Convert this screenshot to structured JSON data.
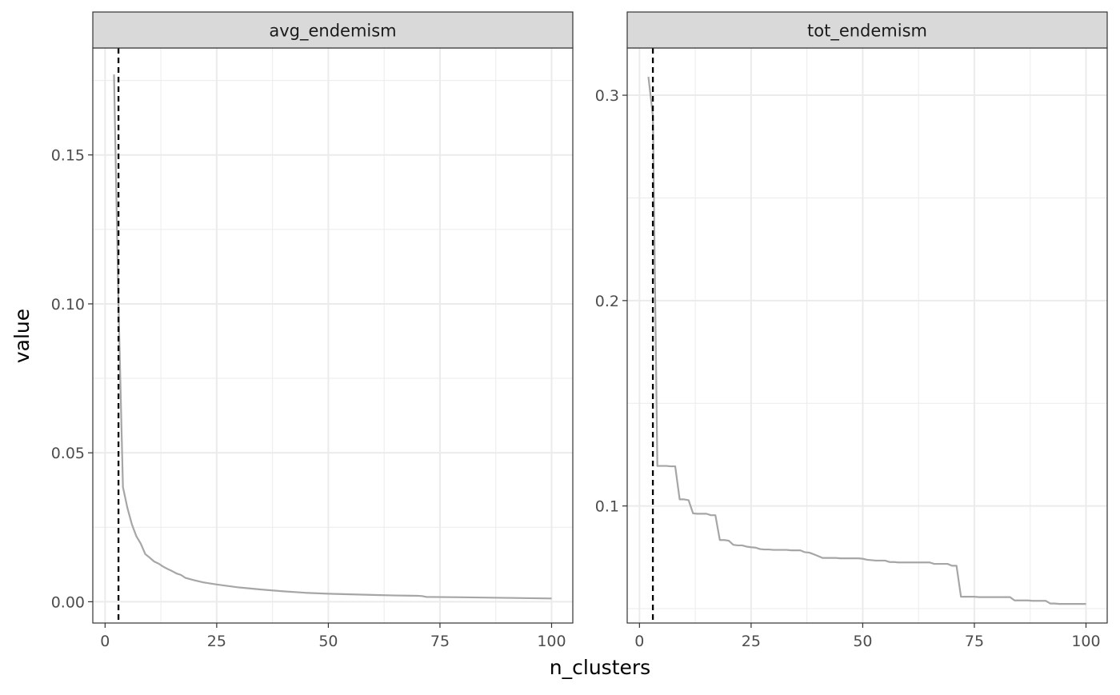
{
  "chart_data": {
    "type": "line",
    "x_label": "n_clusters",
    "y_label": "value",
    "grid": true,
    "line_color": "#a6a6a6",
    "cutoff_line": {
      "x": 3,
      "style": "dashed",
      "color": "#000000"
    },
    "panels": [
      {
        "strip_label": "avg_endemism",
        "xlim": [
          -2.75,
          104.75
        ],
        "ylim": [
          -0.00714,
          0.1859
        ],
        "x_ticks": [
          0,
          25,
          50,
          75,
          100
        ],
        "x_tick_labels": [
          "0",
          "25",
          "50",
          "75",
          "100"
        ],
        "y_ticks": [
          0,
          0.05,
          0.1,
          0.15
        ],
        "y_tick_labels": [
          "0.00",
          "0.05",
          "0.10",
          "0.15"
        ],
        "series": [
          {
            "x": [
              2,
              3,
              4,
              5,
              6,
              7,
              8,
              9,
              10,
              11,
              12,
              13,
              14,
              15,
              16,
              17,
              18,
              20,
              22,
              25,
              30,
              35,
              40,
              45,
              50,
              55,
              60,
              65,
              70,
              71,
              72,
              73,
              80,
              90,
              100
            ],
            "values": [
              0.177,
              0.1,
              0.0385,
              0.0315,
              0.026,
              0.022,
              0.0195,
              0.016,
              0.0148,
              0.0135,
              0.0128,
              0.0118,
              0.011,
              0.0103,
              0.0095,
              0.009,
              0.008,
              0.0072,
              0.0065,
              0.0058,
              0.0048,
              0.0041,
              0.0035,
              0.003,
              0.0027,
              0.0025,
              0.0023,
              0.0021,
              0.002,
              0.0019,
              0.0016,
              0.0016,
              0.0015,
              0.0013,
              0.0011
            ]
          }
        ]
      },
      {
        "strip_label": "tot_endemism",
        "xlim": [
          -2.75,
          104.75
        ],
        "ylim": [
          0.043,
          0.323
        ],
        "x_ticks": [
          0,
          25,
          50,
          75,
          100
        ],
        "x_tick_labels": [
          "0",
          "25",
          "50",
          "75",
          "100"
        ],
        "y_ticks": [
          0.1,
          0.2,
          0.3
        ],
        "y_tick_labels": [
          "0.1",
          "0.2",
          "0.3"
        ],
        "series": [
          {
            "x": [
              2,
              3,
              4,
              5,
              6,
              7,
              8,
              9,
              10,
              11,
              12,
              13,
              14,
              15,
              16,
              17,
              18,
              19,
              20,
              21,
              22,
              23,
              24,
              25,
              26,
              27,
              28,
              29,
              30,
              31,
              32,
              33,
              34,
              35,
              36,
              37,
              38,
              39,
              40,
              41,
              42,
              43,
              44,
              45,
              46,
              47,
              48,
              49,
              50,
              51,
              52,
              53,
              54,
              55,
              56,
              57,
              58,
              59,
              60,
              61,
              62,
              63,
              64,
              65,
              66,
              67,
              68,
              69,
              70,
              71,
              72,
              73,
              74,
              75,
              76,
              77,
              78,
              79,
              80,
              81,
              82,
              83,
              84,
              85,
              86,
              87,
              88,
              89,
              90,
              91,
              92,
              93,
              94,
              95,
              96,
              97,
              98,
              99,
              100
            ],
            "values": [
              0.309,
              0.29,
              0.1195,
              0.1195,
              0.1195,
              0.1193,
              0.1193,
              0.1032,
              0.1032,
              0.1028,
              0.0964,
              0.0962,
              0.0962,
              0.0962,
              0.0955,
              0.0955,
              0.0834,
              0.0834,
              0.0831,
              0.0811,
              0.0808,
              0.0808,
              0.0802,
              0.0799,
              0.0797,
              0.079,
              0.0788,
              0.0788,
              0.0786,
              0.0786,
              0.0786,
              0.0786,
              0.0784,
              0.0784,
              0.0784,
              0.0775,
              0.0773,
              0.0765,
              0.0756,
              0.0747,
              0.0747,
              0.0747,
              0.0747,
              0.0745,
              0.0745,
              0.0745,
              0.0745,
              0.0745,
              0.0743,
              0.0738,
              0.0736,
              0.0734,
              0.0734,
              0.0734,
              0.0727,
              0.0727,
              0.0725,
              0.0725,
              0.0725,
              0.0725,
              0.0725,
              0.0725,
              0.0725,
              0.0725,
              0.0718,
              0.0718,
              0.0718,
              0.0718,
              0.0709,
              0.0709,
              0.0558,
              0.0558,
              0.0558,
              0.0558,
              0.0556,
              0.0556,
              0.0556,
              0.0556,
              0.0556,
              0.0556,
              0.0556,
              0.0556,
              0.054,
              0.054,
              0.054,
              0.054,
              0.0538,
              0.0538,
              0.0538,
              0.0538,
              0.0525,
              0.0525,
              0.0523,
              0.0523,
              0.0523,
              0.0523,
              0.0523,
              0.0523,
              0.0523
            ]
          }
        ]
      }
    ]
  }
}
